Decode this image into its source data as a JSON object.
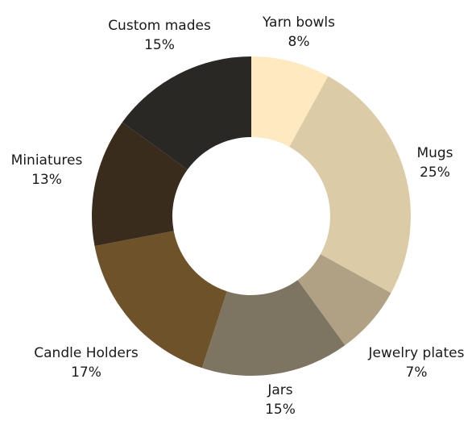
{
  "chart_data": {
    "type": "pie",
    "variant": "donut",
    "title": "",
    "legend": "none",
    "slices": [
      {
        "label": "Yarn bowls",
        "value": 8,
        "display": "8%",
        "color": "#FFE9C0"
      },
      {
        "label": "Mugs",
        "value": 25,
        "display": "25%",
        "color": "#DCCBA7"
      },
      {
        "label": "Jewelry plates",
        "value": 7,
        "display": "7%",
        "color": "#B0A184"
      },
      {
        "label": "Jars",
        "value": 15,
        "display": "15%",
        "color": "#7D7462"
      },
      {
        "label": "Candle Holders",
        "value": 17,
        "display": "17%",
        "color": "#6E522A"
      },
      {
        "label": "Miniatures",
        "value": 13,
        "display": "13%",
        "color": "#3A2C1C"
      },
      {
        "label": "Custom mades",
        "value": 15,
        "display": "15%",
        "color": "#2A2824"
      }
    ]
  }
}
